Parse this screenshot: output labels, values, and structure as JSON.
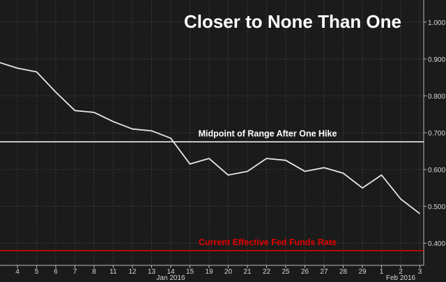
{
  "chart_data": {
    "type": "line",
    "title": "Closer to None Than One",
    "x": [
      "4",
      "5",
      "6",
      "7",
      "8",
      "11",
      "12",
      "13",
      "14",
      "15",
      "19",
      "20",
      "21",
      "22",
      "25",
      "26",
      "27",
      "28",
      "29",
      "1",
      "2",
      "3"
    ],
    "month_labels": [
      {
        "label": "Jan 2016",
        "at": "14"
      },
      {
        "label": "Feb 2016",
        "at": "2"
      }
    ],
    "series": [
      {
        "color": "#e8e8e8",
        "start_value": 0.89,
        "values": [
          0.875,
          0.865,
          0.81,
          0.76,
          0.755,
          0.73,
          0.71,
          0.705,
          0.685,
          0.615,
          0.63,
          0.585,
          0.595,
          0.63,
          0.625,
          0.595,
          0.605,
          0.59,
          0.55,
          0.585,
          0.52,
          0.48
        ]
      }
    ],
    "reference_lines": [
      {
        "label": "Midpoint of Range After One Hike",
        "value": 0.675,
        "color": "#ffffff"
      },
      {
        "label": "Current Effective Fed Funds Rate",
        "value": 0.38,
        "color": "#e00000"
      }
    ],
    "yticks": [
      "1.000",
      "0.900",
      "0.800",
      "0.700",
      "0.600",
      "0.500",
      "0.400"
    ],
    "ylim": [
      0.34,
      1.06
    ],
    "grid": true,
    "grid_color": "#4a4a4a",
    "background": "#1b1b1b",
    "axis_position": "right"
  }
}
